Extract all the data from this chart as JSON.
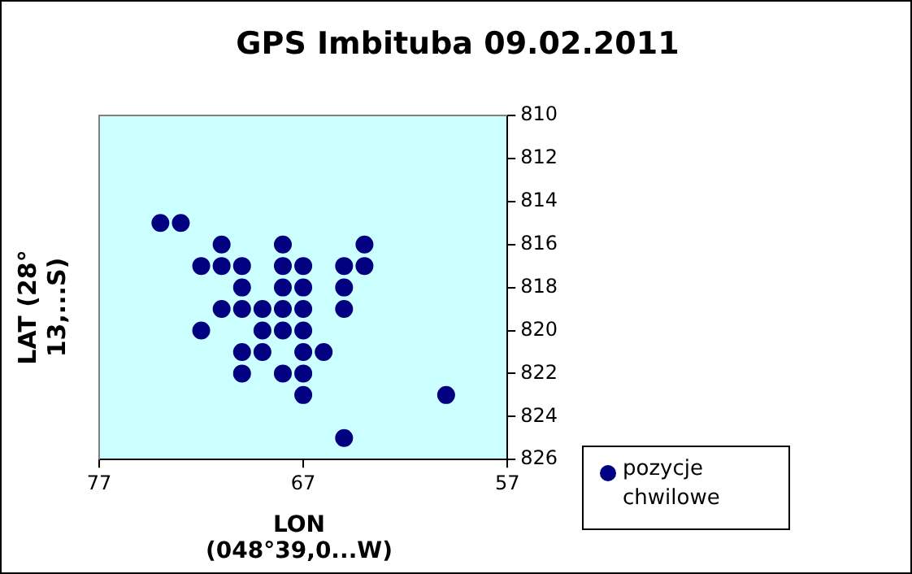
{
  "chart_data": {
    "type": "scatter",
    "title": "GPS Imbituba 09.02.2011",
    "xlabel": "LON (048°39,0...W)",
    "ylabel": "LAT (28° 13,...S)",
    "xlim": [
      77,
      57
    ],
    "xticks": [
      77,
      67,
      57
    ],
    "ylim": [
      826,
      810
    ],
    "yticks": [
      810,
      812,
      814,
      816,
      818,
      820,
      822,
      824,
      826
    ],
    "grid": false,
    "legend": "right",
    "marker": "circle",
    "series": [
      {
        "name": "pozycje chwilowe",
        "color": "#000080",
        "x": [
          74,
          73,
          71,
          68,
          64,
          72,
          71,
          70,
          68,
          67,
          65,
          64,
          70,
          68,
          67,
          65,
          71,
          70,
          69,
          68,
          67,
          65,
          72,
          69,
          68,
          67,
          70,
          69,
          67,
          66,
          70,
          68,
          67,
          67,
          60,
          65
        ],
        "values": [
          815,
          815,
          816,
          816,
          816,
          817,
          817,
          817,
          817,
          817,
          817,
          817,
          818,
          818,
          818,
          818,
          819,
          819,
          819,
          819,
          819,
          819,
          820,
          820,
          820,
          820,
          821,
          821,
          821,
          821,
          822,
          822,
          822,
          823,
          823,
          825
        ]
      }
    ]
  }
}
